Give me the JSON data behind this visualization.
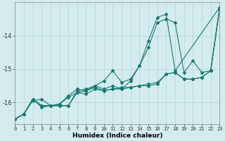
{
  "xlabel": "Humidex (Indice chaleur)",
  "bg_color": "#d4ecee",
  "grid_color": "#b8d8da",
  "line_color": "#1a7a6e",
  "lines": [
    {
      "x": [
        0,
        1,
        2,
        3,
        4,
        5,
        6,
        7,
        8,
        9,
        10,
        11,
        12,
        13,
        14,
        15,
        16,
        17,
        18,
        19,
        20,
        21,
        22,
        23
      ],
      "y": [
        -16.5,
        -16.35,
        -15.95,
        -15.9,
        -16.1,
        -16.05,
        -15.85,
        -15.7,
        -15.75,
        -15.6,
        -15.65,
        -15.6,
        -15.6,
        -15.55,
        -15.5,
        -15.5,
        -15.45,
        -15.15,
        -15.1,
        -15.3,
        -15.3,
        -15.25,
        -15.05,
        -13.2
      ]
    },
    {
      "x": [
        0,
        1,
        2,
        3,
        4,
        5,
        6,
        7,
        8,
        9,
        10,
        11,
        12,
        13,
        14,
        15,
        16,
        17,
        18,
        19,
        20,
        21,
        22,
        23
      ],
      "y": [
        -16.5,
        -16.35,
        -15.9,
        -16.15,
        -16.1,
        -16.1,
        -16.1,
        -15.7,
        -15.65,
        -15.5,
        -15.35,
        -15.05,
        -15.4,
        -15.3,
        -14.9,
        -14.35,
        -13.6,
        -13.5,
        -13.6,
        -15.1,
        -14.75,
        -15.1,
        -15.05,
        -13.15
      ]
    },
    {
      "x": [
        0,
        1,
        2,
        3,
        4,
        5,
        6,
        7,
        8,
        9,
        10,
        11,
        12,
        13,
        14,
        15,
        16,
        17,
        18,
        23
      ],
      "y": [
        -16.5,
        -16.35,
        -15.9,
        -16.1,
        -16.1,
        -16.1,
        -16.1,
        -15.65,
        -15.6,
        -15.5,
        -15.6,
        -15.5,
        -15.6,
        -15.35,
        -14.9,
        -14.15,
        -13.45,
        -13.35,
        -15.05,
        -13.15
      ]
    },
    {
      "x": [
        0,
        1,
        2,
        3,
        4,
        5,
        6,
        7,
        8,
        9,
        10,
        11,
        12,
        13,
        14,
        15,
        16,
        17,
        18,
        19,
        20,
        21,
        22,
        23
      ],
      "y": [
        -16.5,
        -16.35,
        -15.9,
        -16.1,
        -16.1,
        -16.05,
        -15.8,
        -15.6,
        -15.65,
        -15.55,
        -15.65,
        -15.6,
        -15.55,
        -15.55,
        -15.5,
        -15.45,
        -15.4,
        -15.15,
        -15.1,
        -15.3,
        -15.3,
        -15.25,
        -15.05,
        -13.2
      ]
    }
  ],
  "xlim": [
    0,
    23
  ],
  "ylim": [
    -16.65,
    -13.0
  ],
  "yticks": [
    -16,
    -15,
    -14
  ],
  "ytick_labels": [
    "-16",
    "-15",
    "-14"
  ],
  "xticks": [
    0,
    1,
    2,
    3,
    4,
    5,
    6,
    7,
    8,
    9,
    10,
    11,
    12,
    13,
    14,
    15,
    16,
    17,
    18,
    19,
    20,
    21,
    22,
    23
  ],
  "tick_fontsize": 5.0,
  "ytick_fontsize": 6.0,
  "xlabel_fontsize": 6.5,
  "lw": 0.8,
  "ms": 2.0
}
